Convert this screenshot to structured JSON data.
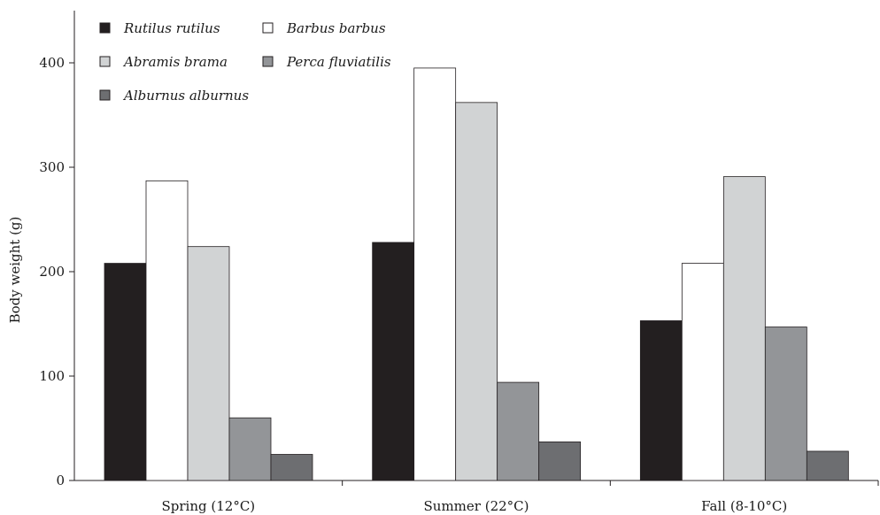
{
  "chart_data": {
    "type": "bar",
    "title": "",
    "xlabel": "",
    "ylabel": "Body weight (g)",
    "ylim": [
      0,
      440
    ],
    "yticks": [
      0,
      100,
      200,
      300,
      400
    ],
    "grid": false,
    "legend_position": "top-left",
    "categories": [
      "Spring (12°C)",
      "Summer (22°C)",
      "Fall (8-10°C)"
    ],
    "series": [
      {
        "name": "Rutilus rutilus",
        "color": "#231f20",
        "values": [
          208,
          228,
          153
        ]
      },
      {
        "name": "Barbus barbus",
        "color": "#ffffff",
        "values": [
          287,
          395,
          208
        ]
      },
      {
        "name": "Abramis brama",
        "color": "#d1d3d4",
        "values": [
          224,
          362,
          291
        ]
      },
      {
        "name": "Perca fluviatilis",
        "color": "#939598",
        "values": [
          60,
          94,
          147
        ]
      },
      {
        "name": "Alburnus alburnus",
        "color": "#6d6e71",
        "values": [
          25,
          37,
          28
        ]
      }
    ]
  }
}
